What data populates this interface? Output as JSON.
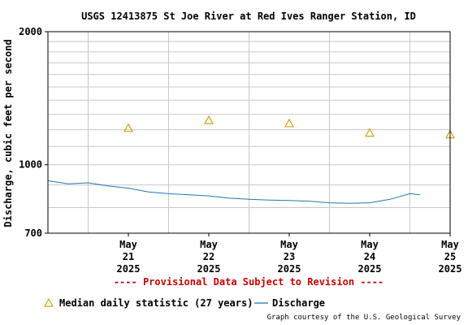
{
  "chart_data": {
    "type": "line",
    "title": "USGS 12413875 St Joe River at Red Ives Ranger Station, ID",
    "ylabel": "Discharge, cubic feet per second",
    "xlabel": "",
    "y_scale": "log",
    "ylim": [
      700,
      2000
    ],
    "y_tick_labels": [
      "2000",
      "1000",
      "700"
    ],
    "y_tick_values": [
      2000,
      1000,
      700
    ],
    "x_range": [
      "2025-05-20 12:00",
      "2025-05-25 12:00"
    ],
    "x_ticks": [
      {
        "date": "2025-05-21 12:00",
        "lines": [
          "May",
          "21",
          "2025"
        ]
      },
      {
        "date": "2025-05-22 12:00",
        "lines": [
          "May",
          "22",
          "2025"
        ]
      },
      {
        "date": "2025-05-23 12:00",
        "lines": [
          "May",
          "23",
          "2025"
        ]
      },
      {
        "date": "2025-05-24 12:00",
        "lines": [
          "May",
          "24",
          "2025"
        ]
      },
      {
        "date": "2025-05-25 12:00",
        "lines": [
          "May",
          "25",
          "2025"
        ]
      }
    ],
    "grid": true,
    "series": [
      {
        "name": "Median daily statistic (27 years)",
        "kind": "marker-triangle",
        "color": "#d4a017",
        "points": [
          {
            "x": "2025-05-21 12:00",
            "y": 1210
          },
          {
            "x": "2025-05-22 12:00",
            "y": 1260
          },
          {
            "x": "2025-05-23 12:00",
            "y": 1240
          },
          {
            "x": "2025-05-24 12:00",
            "y": 1180
          },
          {
            "x": "2025-05-25 12:00",
            "y": 1170
          }
        ]
      },
      {
        "name": "Discharge",
        "kind": "line",
        "color": "#1f77b4",
        "points": [
          {
            "x": "2025-05-20 12:00",
            "y": 920
          },
          {
            "x": "2025-05-20 18:00",
            "y": 905
          },
          {
            "x": "2025-05-21 00:00",
            "y": 910
          },
          {
            "x": "2025-05-21 06:00",
            "y": 895
          },
          {
            "x": "2025-05-21 12:00",
            "y": 885
          },
          {
            "x": "2025-05-21 18:00",
            "y": 868
          },
          {
            "x": "2025-05-22 00:00",
            "y": 860
          },
          {
            "x": "2025-05-22 06:00",
            "y": 855
          },
          {
            "x": "2025-05-22 12:00",
            "y": 850
          },
          {
            "x": "2025-05-22 18:00",
            "y": 840
          },
          {
            "x": "2025-05-23 00:00",
            "y": 835
          },
          {
            "x": "2025-05-23 06:00",
            "y": 832
          },
          {
            "x": "2025-05-23 12:00",
            "y": 830
          },
          {
            "x": "2025-05-23 18:00",
            "y": 827
          },
          {
            "x": "2025-05-24 00:00",
            "y": 820
          },
          {
            "x": "2025-05-24 06:00",
            "y": 818
          },
          {
            "x": "2025-05-24 12:00",
            "y": 820
          },
          {
            "x": "2025-05-24 18:00",
            "y": 835
          },
          {
            "x": "2025-05-25 00:00",
            "y": 860
          },
          {
            "x": "2025-05-25 03:00",
            "y": 855
          }
        ]
      }
    ]
  },
  "notice": "---- Provisional Data Subject to Revision ----",
  "legend": {
    "median_label": "Median daily statistic (27 years)",
    "discharge_label": "Discharge"
  },
  "credit": "Graph courtesy of the U.S. Geological Survey",
  "colors": {
    "notice": "#cc0000",
    "grid": "#c8c8c8",
    "median": "#d4a017",
    "discharge": "#1f77b4"
  }
}
